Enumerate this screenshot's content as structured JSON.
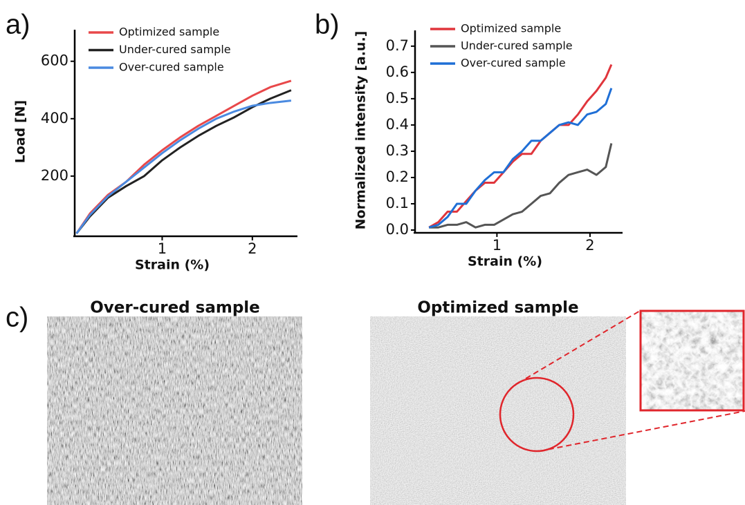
{
  "panels": [
    "a)",
    "b)",
    "c)"
  ],
  "images": [
    {
      "title": "Over-cured sample"
    },
    {
      "title": "Optimized sample"
    }
  ],
  "chart_data": [
    {
      "type": "line",
      "x_label": "Strain (%)",
      "y_label": "Load [N]",
      "x": [
        0.05,
        0.2,
        0.4,
        0.6,
        0.8,
        1.0,
        1.2,
        1.4,
        1.6,
        1.8,
        2.0,
        2.2,
        2.43
      ],
      "series": [
        {
          "name": "Optimized sample",
          "color": "#e8484a",
          "values": [
            0,
            70,
            135,
            180,
            240,
            290,
            335,
            375,
            410,
            445,
            480,
            510,
            532
          ]
        },
        {
          "name": "Under-cured sample",
          "color": "#222222",
          "values": [
            0,
            60,
            125,
            165,
            200,
            255,
            300,
            340,
            375,
            405,
            440,
            470,
            499
          ]
        },
        {
          "name": "Over-cured sample",
          "color": "#4a8ae0",
          "values": [
            0,
            65,
            130,
            180,
            230,
            280,
            325,
            365,
            400,
            425,
            445,
            455,
            463
          ]
        }
      ],
      "xlim": [
        0.03,
        2.5
      ],
      "ylim": [
        0,
        710
      ],
      "xticks": [
        1,
        2
      ],
      "yticks": [
        200,
        400,
        600
      ]
    },
    {
      "type": "line",
      "x_label": "Strain (%)",
      "y_label": "Normalized intensity [a.u.]",
      "x": [
        0.27,
        0.37,
        0.47,
        0.57,
        0.67,
        0.77,
        0.87,
        0.97,
        1.07,
        1.17,
        1.27,
        1.37,
        1.47,
        1.57,
        1.67,
        1.77,
        1.87,
        1.97,
        2.07,
        2.17,
        2.23
      ],
      "series": [
        {
          "name": "Optimized sample",
          "color": "#e0353c",
          "values": [
            0.01,
            0.03,
            0.07,
            0.07,
            0.11,
            0.15,
            0.18,
            0.18,
            0.22,
            0.26,
            0.29,
            0.29,
            0.34,
            0.37,
            0.4,
            0.4,
            0.44,
            0.49,
            0.53,
            0.58,
            0.63
          ]
        },
        {
          "name": "Under-cured sample",
          "color": "#555555",
          "values": [
            0.01,
            0.01,
            0.02,
            0.02,
            0.03,
            0.01,
            0.02,
            0.02,
            0.04,
            0.06,
            0.07,
            0.1,
            0.13,
            0.14,
            0.18,
            0.21,
            0.22,
            0.23,
            0.21,
            0.24,
            0.33
          ]
        },
        {
          "name": "Over-cured sample",
          "color": "#1f6fd6",
          "values": [
            0.01,
            0.02,
            0.05,
            0.1,
            0.1,
            0.15,
            0.19,
            0.22,
            0.22,
            0.27,
            0.3,
            0.34,
            0.34,
            0.37,
            0.4,
            0.41,
            0.4,
            0.44,
            0.45,
            0.48,
            0.54
          ]
        }
      ],
      "xlim": [
        0.12,
        2.35
      ],
      "ylim": [
        0,
        0.76
      ],
      "xticks": [
        1,
        2
      ],
      "yticks": [
        {
          "value": 0,
          "label": "0.0"
        },
        0.1,
        0.2,
        0.3,
        0.4,
        0.5,
        0.6,
        0.7
      ]
    }
  ]
}
